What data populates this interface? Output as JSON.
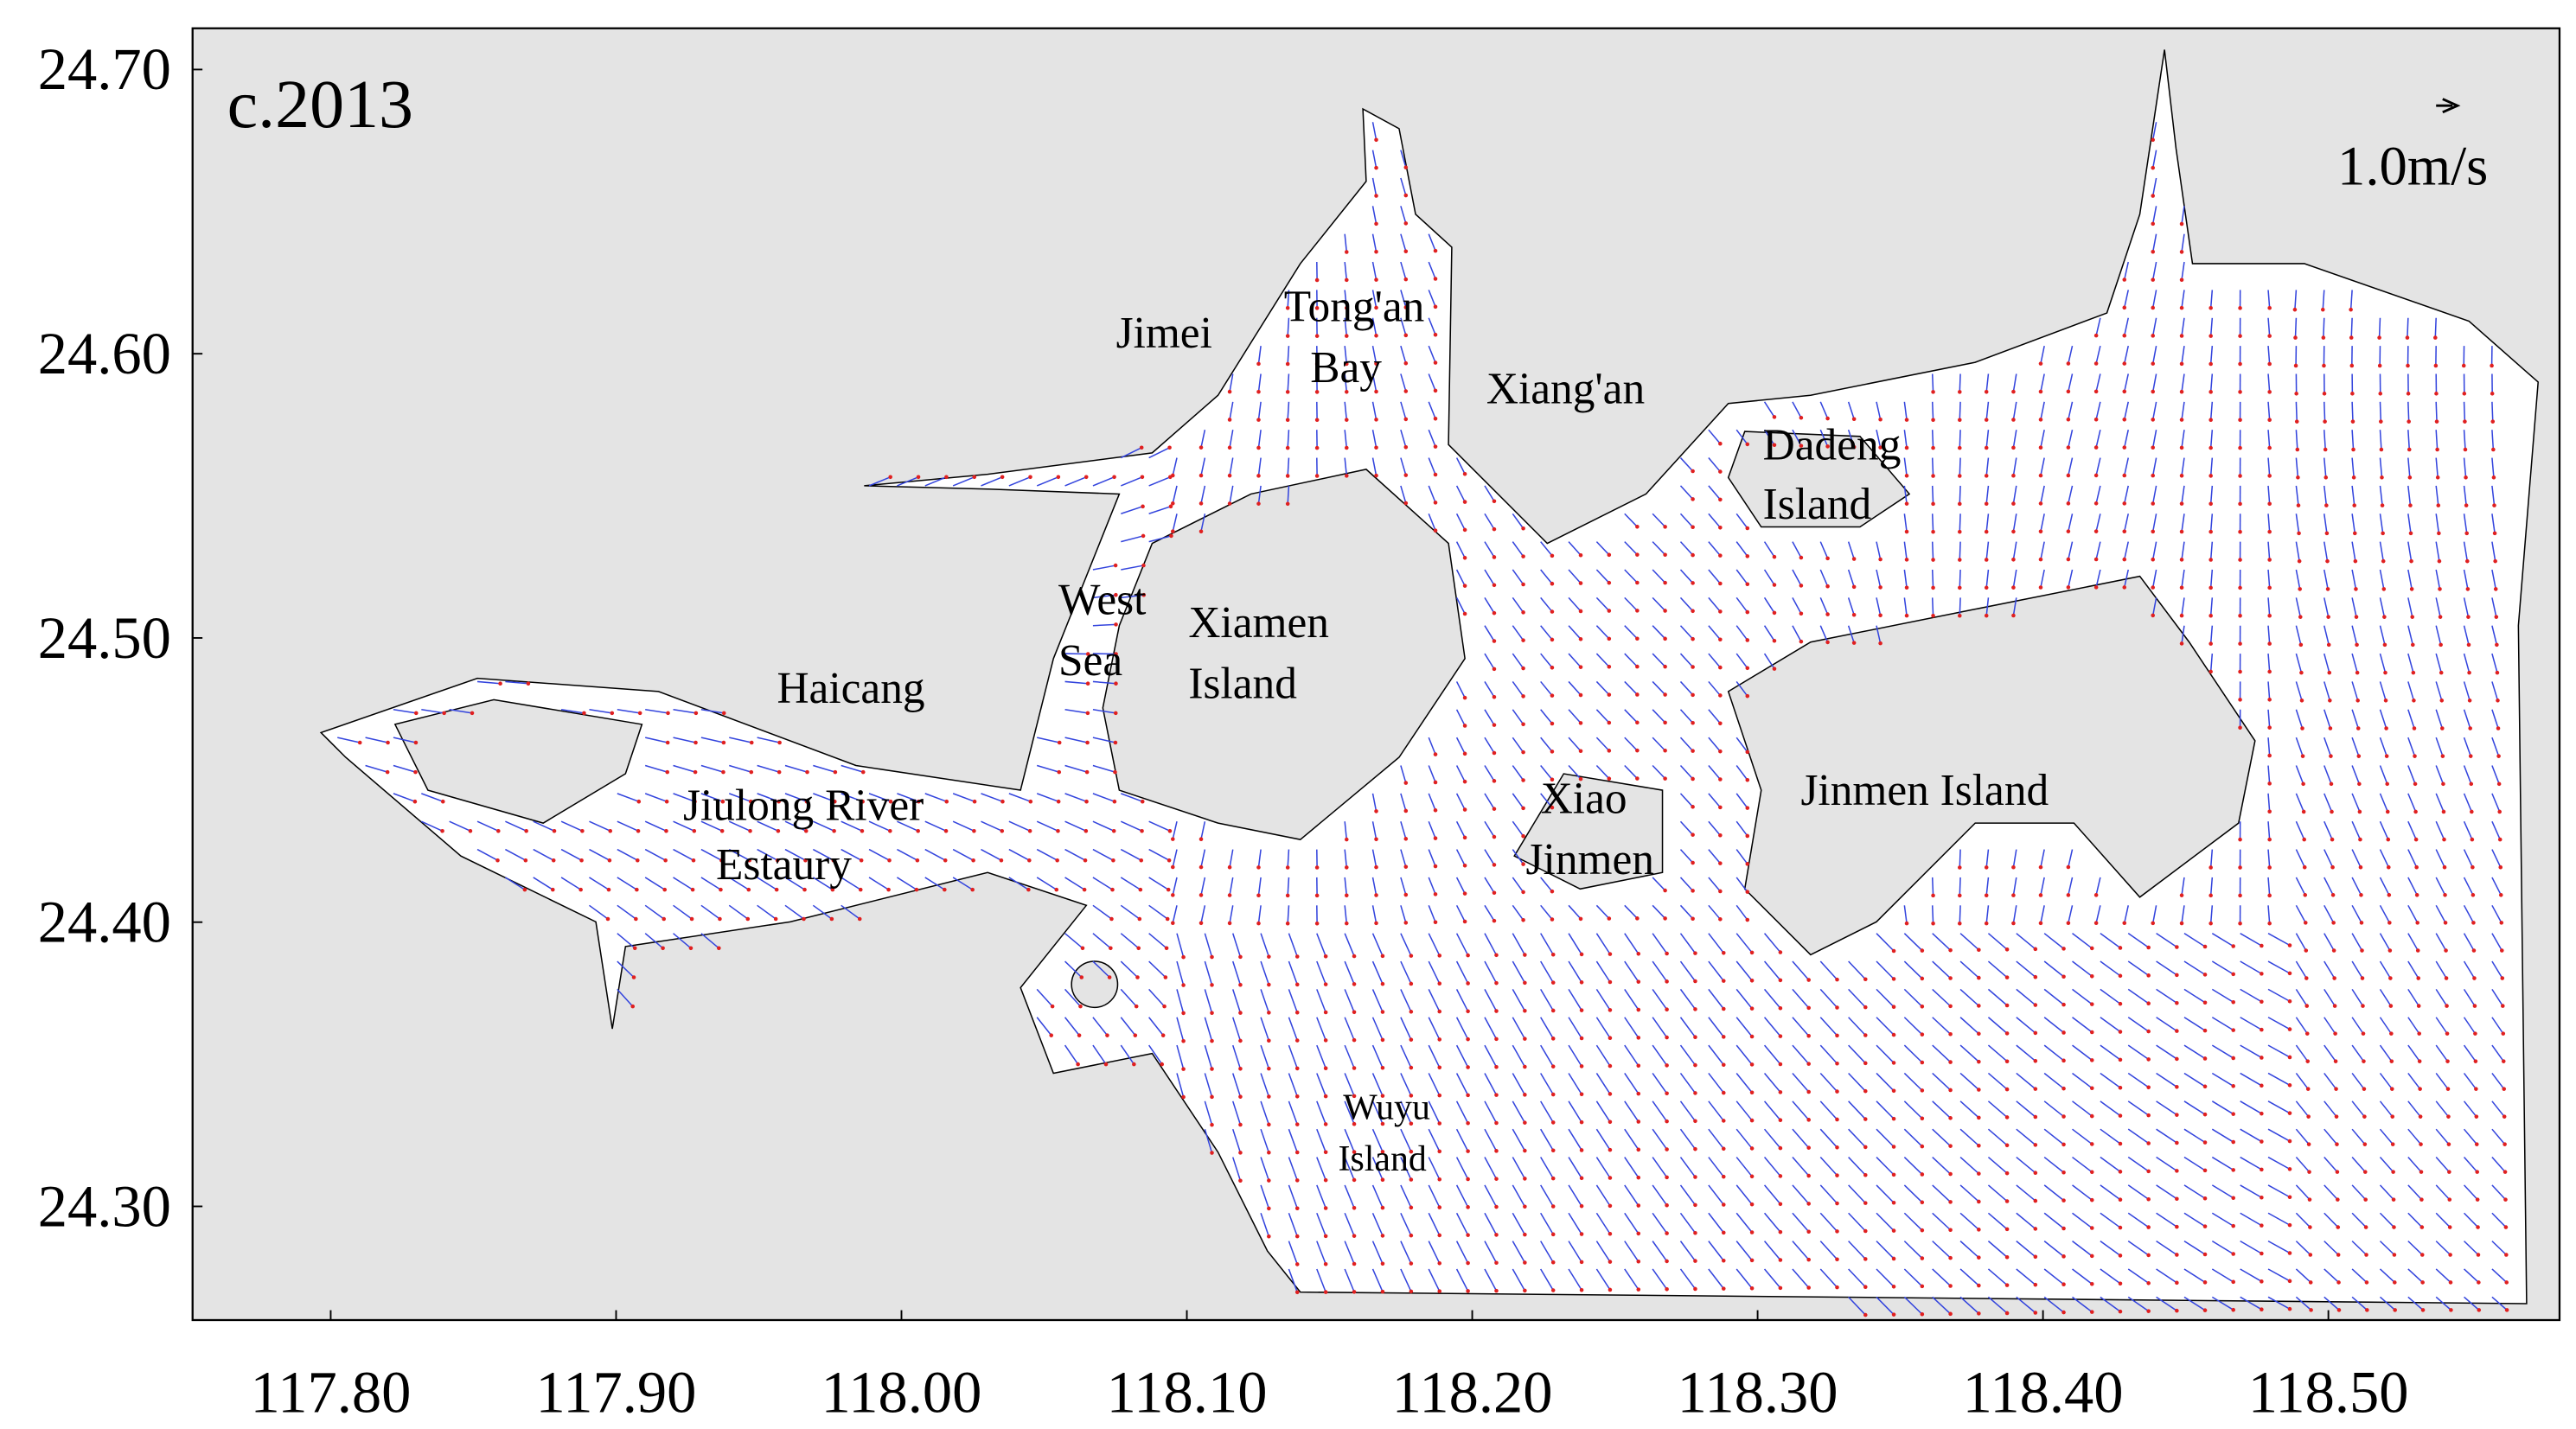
{
  "chart_data": {
    "type": "vector-map",
    "title": "c.2013",
    "xlim": [
      117.7516,
      118.581
    ],
    "ylim": [
      24.26,
      24.7145
    ],
    "xticks": [
      {
        "value": 117.8,
        "label": "117.80"
      },
      {
        "value": 117.9,
        "label": "117.90"
      },
      {
        "value": 118.0,
        "label": "118.00"
      },
      {
        "value": 118.1,
        "label": "118.10"
      },
      {
        "value": 118.2,
        "label": "118.20"
      },
      {
        "value": 118.3,
        "label": "118.30"
      },
      {
        "value": 118.4,
        "label": "118.40"
      },
      {
        "value": 118.5,
        "label": "118.50"
      }
    ],
    "yticks": [
      {
        "value": 24.3,
        "label": "24.30"
      },
      {
        "value": 24.4,
        "label": "24.40"
      },
      {
        "value": 24.5,
        "label": "24.50"
      },
      {
        "value": 24.6,
        "label": "24.60"
      },
      {
        "value": 24.7,
        "label": "24.70"
      }
    ],
    "scale_label": "1.0m/s",
    "places": [
      "Jimei",
      "Tong'an",
      "Bay",
      "Xiang'an",
      "Dadeng",
      "Island",
      "West",
      "Sea",
      "Xiamen",
      "Island",
      "Haicang",
      "Jiulong River",
      "Estaury",
      "Xiao",
      "Jinmen",
      "Jinmen Island",
      "Wuyu",
      "Island"
    ]
  }
}
